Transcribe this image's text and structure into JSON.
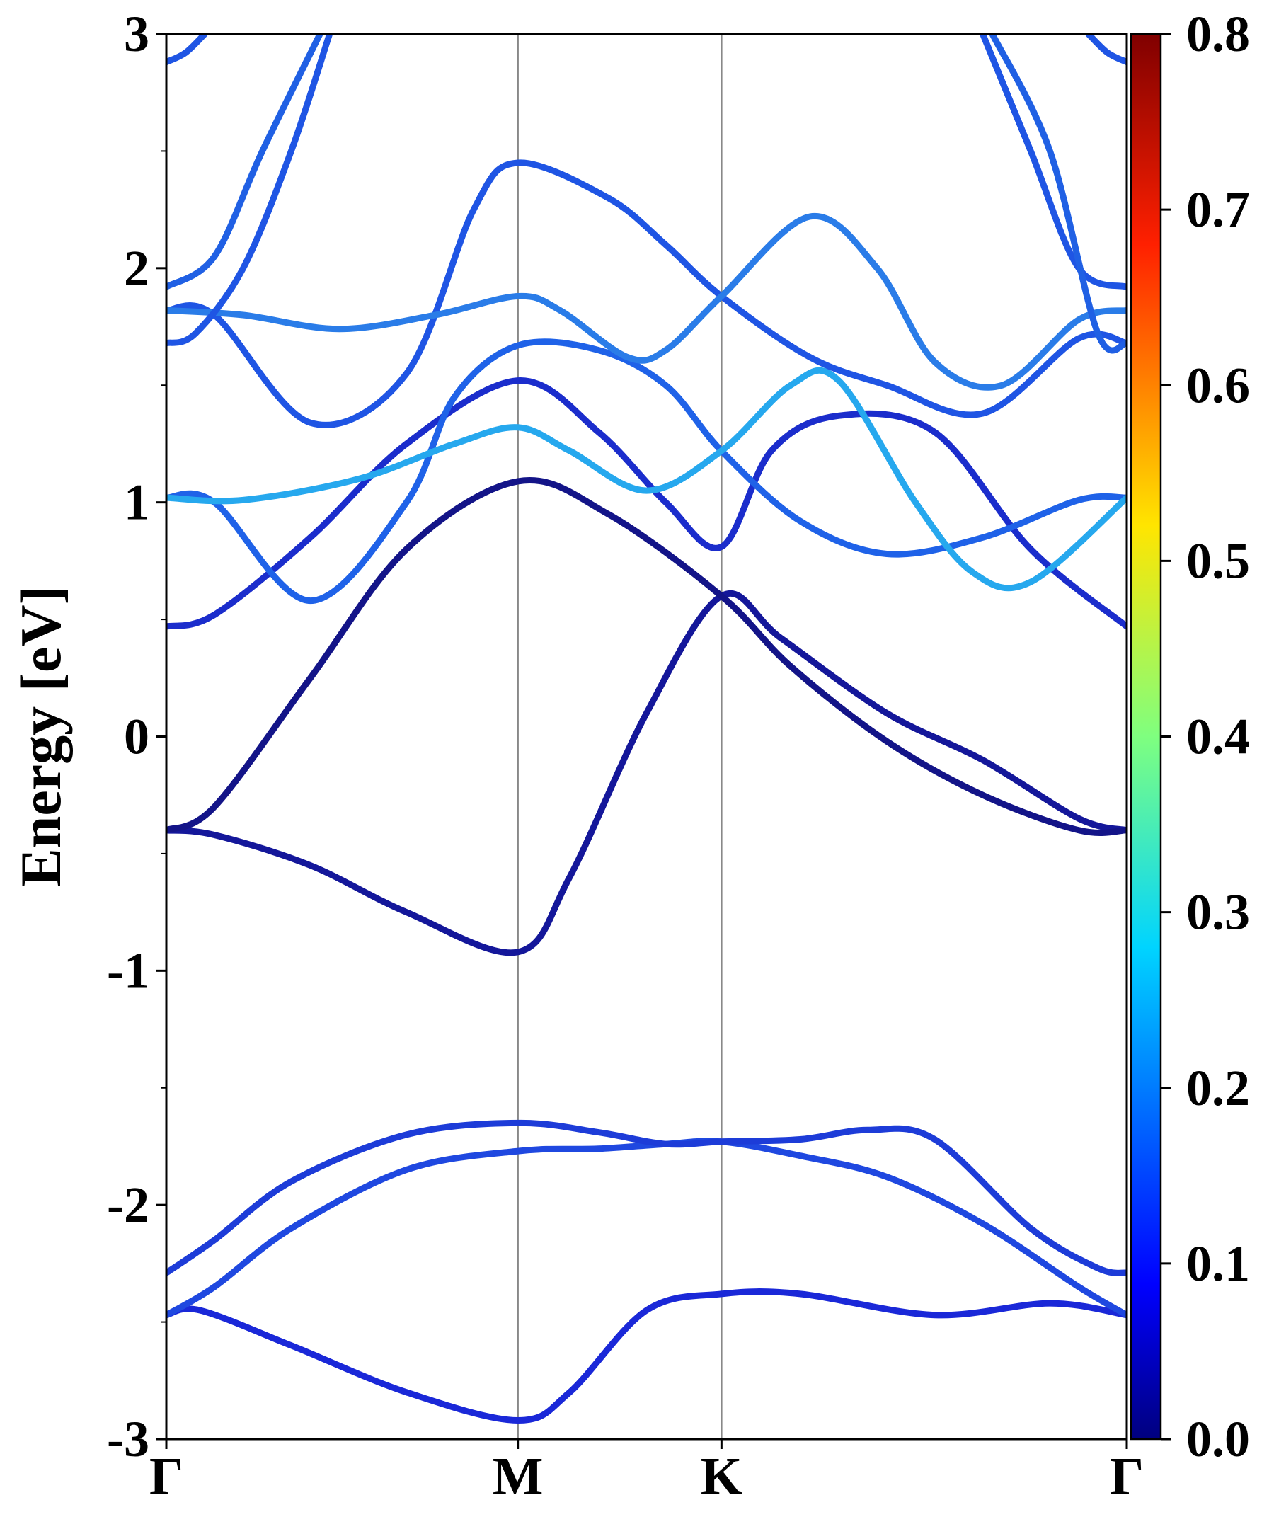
{
  "chart_data": {
    "type": "line",
    "xlabel": "",
    "ylabel": "Energy [eV]",
    "ylim": [
      -3,
      3
    ],
    "xlim": [
      0,
      1
    ],
    "grid": false,
    "x_ticks": [
      {
        "label": "Γ",
        "x": 0.0
      },
      {
        "label": "M",
        "x": 0.366
      },
      {
        "label": "K",
        "x": 0.578
      },
      {
        "label": "Γ",
        "x": 1.0
      }
    ],
    "y_ticks": [
      "-3",
      "-2",
      "-1",
      "0",
      "1",
      "2",
      "3"
    ],
    "colorbar": {
      "range": [
        0.0,
        0.8
      ],
      "ticks": [
        "0.0",
        "0.1",
        "0.2",
        "0.3",
        "0.4",
        "0.5",
        "0.6",
        "0.7",
        "0.8"
      ],
      "colormap": "jet"
    },
    "series": [
      {
        "color": "#1a28d8",
        "values": [
          [
            0,
            -2.47
          ],
          [
            0.035,
            -2.45
          ],
          [
            0.13,
            -2.6
          ],
          [
            0.25,
            -2.8
          ],
          [
            0.366,
            -2.92
          ],
          [
            0.42,
            -2.8
          ],
          [
            0.5,
            -2.45
          ],
          [
            0.578,
            -2.38
          ],
          [
            0.66,
            -2.38
          ],
          [
            0.8,
            -2.47
          ],
          [
            0.92,
            -2.42
          ],
          [
            1.0,
            -2.47
          ]
        ]
      },
      {
        "color": "#1f48e0",
        "values": [
          [
            0,
            -2.47
          ],
          [
            0.05,
            -2.35
          ],
          [
            0.13,
            -2.1
          ],
          [
            0.25,
            -1.85
          ],
          [
            0.366,
            -1.77
          ],
          [
            0.45,
            -1.76
          ],
          [
            0.52,
            -1.74
          ],
          [
            0.578,
            -1.73
          ],
          [
            0.66,
            -1.79
          ],
          [
            0.75,
            -1.88
          ],
          [
            0.85,
            -2.08
          ],
          [
            0.95,
            -2.35
          ],
          [
            1.0,
            -2.47
          ]
        ]
      },
      {
        "color": "#1d3cd8",
        "values": [
          [
            0,
            -2.29
          ],
          [
            0.05,
            -2.15
          ],
          [
            0.13,
            -1.9
          ],
          [
            0.25,
            -1.7
          ],
          [
            0.366,
            -1.65
          ],
          [
            0.45,
            -1.69
          ],
          [
            0.52,
            -1.74
          ],
          [
            0.578,
            -1.73
          ],
          [
            0.66,
            -1.72
          ],
          [
            0.73,
            -1.68
          ],
          [
            0.8,
            -1.72
          ],
          [
            0.9,
            -2.1
          ],
          [
            0.97,
            -2.27
          ],
          [
            1.0,
            -2.29
          ]
        ]
      },
      {
        "color": "#14179a",
        "values": [
          [
            0,
            -0.4
          ],
          [
            0.05,
            -0.42
          ],
          [
            0.15,
            -0.55
          ],
          [
            0.25,
            -0.75
          ],
          [
            0.366,
            -0.92
          ],
          [
            0.42,
            -0.6
          ],
          [
            0.5,
            0.1
          ],
          [
            0.578,
            0.6
          ],
          [
            0.64,
            0.42
          ],
          [
            0.75,
            0.1
          ],
          [
            0.85,
            -0.1
          ],
          [
            0.95,
            -0.35
          ],
          [
            1.0,
            -0.4
          ]
        ]
      },
      {
        "color": "#131488",
        "values": [
          [
            0,
            -0.4
          ],
          [
            0.05,
            -0.3
          ],
          [
            0.15,
            0.25
          ],
          [
            0.25,
            0.8
          ],
          [
            0.366,
            1.09
          ],
          [
            0.46,
            0.95
          ],
          [
            0.578,
            0.6
          ],
          [
            0.65,
            0.3
          ],
          [
            0.75,
            -0.02
          ],
          [
            0.85,
            -0.25
          ],
          [
            0.95,
            -0.4
          ],
          [
            1.0,
            -0.4
          ]
        ]
      },
      {
        "color": "#1b2dcc",
        "values": [
          [
            0,
            0.47
          ],
          [
            0.05,
            0.52
          ],
          [
            0.15,
            0.85
          ],
          [
            0.25,
            1.25
          ],
          [
            0.366,
            1.52
          ],
          [
            0.45,
            1.3
          ],
          [
            0.52,
            1.0
          ],
          [
            0.578,
            0.81
          ],
          [
            0.63,
            1.22
          ],
          [
            0.7,
            1.37
          ],
          [
            0.8,
            1.3
          ],
          [
            0.9,
            0.8
          ],
          [
            1.0,
            0.47
          ]
        ]
      },
      {
        "color": "#1f62e8",
        "values": [
          [
            0,
            1.02
          ],
          [
            0.05,
            1.0
          ],
          [
            0.15,
            0.58
          ],
          [
            0.25,
            1.0
          ],
          [
            0.3,
            1.45
          ],
          [
            0.366,
            1.67
          ],
          [
            0.45,
            1.65
          ],
          [
            0.52,
            1.5
          ],
          [
            0.578,
            1.22
          ],
          [
            0.66,
            0.92
          ],
          [
            0.75,
            0.78
          ],
          [
            0.85,
            0.85
          ],
          [
            0.95,
            1.01
          ],
          [
            1.0,
            1.02
          ]
        ]
      },
      {
        "color": "#26a8ee",
        "values": [
          [
            0,
            1.02
          ],
          [
            0.08,
            1.01
          ],
          [
            0.2,
            1.1
          ],
          [
            0.3,
            1.25
          ],
          [
            0.366,
            1.32
          ],
          [
            0.42,
            1.22
          ],
          [
            0.5,
            1.05
          ],
          [
            0.578,
            1.22
          ],
          [
            0.65,
            1.5
          ],
          [
            0.7,
            1.52
          ],
          [
            0.78,
            1.0
          ],
          [
            0.84,
            0.7
          ],
          [
            0.9,
            0.66
          ],
          [
            1.0,
            1.02
          ]
        ]
      },
      {
        "color": "#1f55e4",
        "values": [
          [
            0,
            1.82
          ],
          [
            0.05,
            1.8
          ],
          [
            0.15,
            1.34
          ],
          [
            0.25,
            1.55
          ],
          [
            0.32,
            2.25
          ],
          [
            0.366,
            2.45
          ],
          [
            0.46,
            2.3
          ],
          [
            0.52,
            2.1
          ],
          [
            0.578,
            1.88
          ],
          [
            0.67,
            1.62
          ],
          [
            0.75,
            1.5
          ],
          [
            0.85,
            1.38
          ],
          [
            0.95,
            1.7
          ],
          [
            1.0,
            1.68
          ]
        ]
      },
      {
        "color": "#2a7ce8",
        "values": [
          [
            0,
            1.82
          ],
          [
            0.08,
            1.8
          ],
          [
            0.18,
            1.74
          ],
          [
            0.28,
            1.8
          ],
          [
            0.366,
            1.88
          ],
          [
            0.41,
            1.82
          ],
          [
            0.48,
            1.62
          ],
          [
            0.52,
            1.65
          ],
          [
            0.578,
            1.88
          ],
          [
            0.67,
            2.22
          ],
          [
            0.74,
            2.0
          ],
          [
            0.8,
            1.6
          ],
          [
            0.87,
            1.5
          ],
          [
            0.95,
            1.78
          ],
          [
            1.0,
            1.82
          ]
        ]
      },
      {
        "color": "#1f55e4",
        "values": [
          [
            0,
            1.68
          ],
          [
            0.03,
            1.72
          ],
          [
            0.08,
            2.0
          ],
          [
            0.13,
            2.5
          ],
          [
            0.17,
            3.0
          ]
        ]
      },
      {
        "color": "#2060e4",
        "values": [
          [
            0,
            1.92
          ],
          [
            0.05,
            2.05
          ],
          [
            0.1,
            2.5
          ],
          [
            0.16,
            3.0
          ]
        ]
      },
      {
        "color": "#1f55e4",
        "values": [
          [
            0.85,
            3.0
          ],
          [
            0.9,
            2.5
          ],
          [
            0.95,
            2.0
          ],
          [
            1.0,
            1.92
          ]
        ]
      },
      {
        "color": "#2060e4",
        "values": [
          [
            0.86,
            3.0
          ],
          [
            0.92,
            2.5
          ],
          [
            0.97,
            1.72
          ],
          [
            1.0,
            1.68
          ]
        ]
      },
      {
        "color": "#1f55e4",
        "values": [
          [
            0,
            2.88
          ],
          [
            0.02,
            2.92
          ],
          [
            0.04,
            3.0
          ]
        ]
      },
      {
        "color": "#1f55e4",
        "values": [
          [
            0.96,
            3.0
          ],
          [
            0.98,
            2.92
          ],
          [
            1.0,
            2.88
          ]
        ]
      }
    ]
  }
}
